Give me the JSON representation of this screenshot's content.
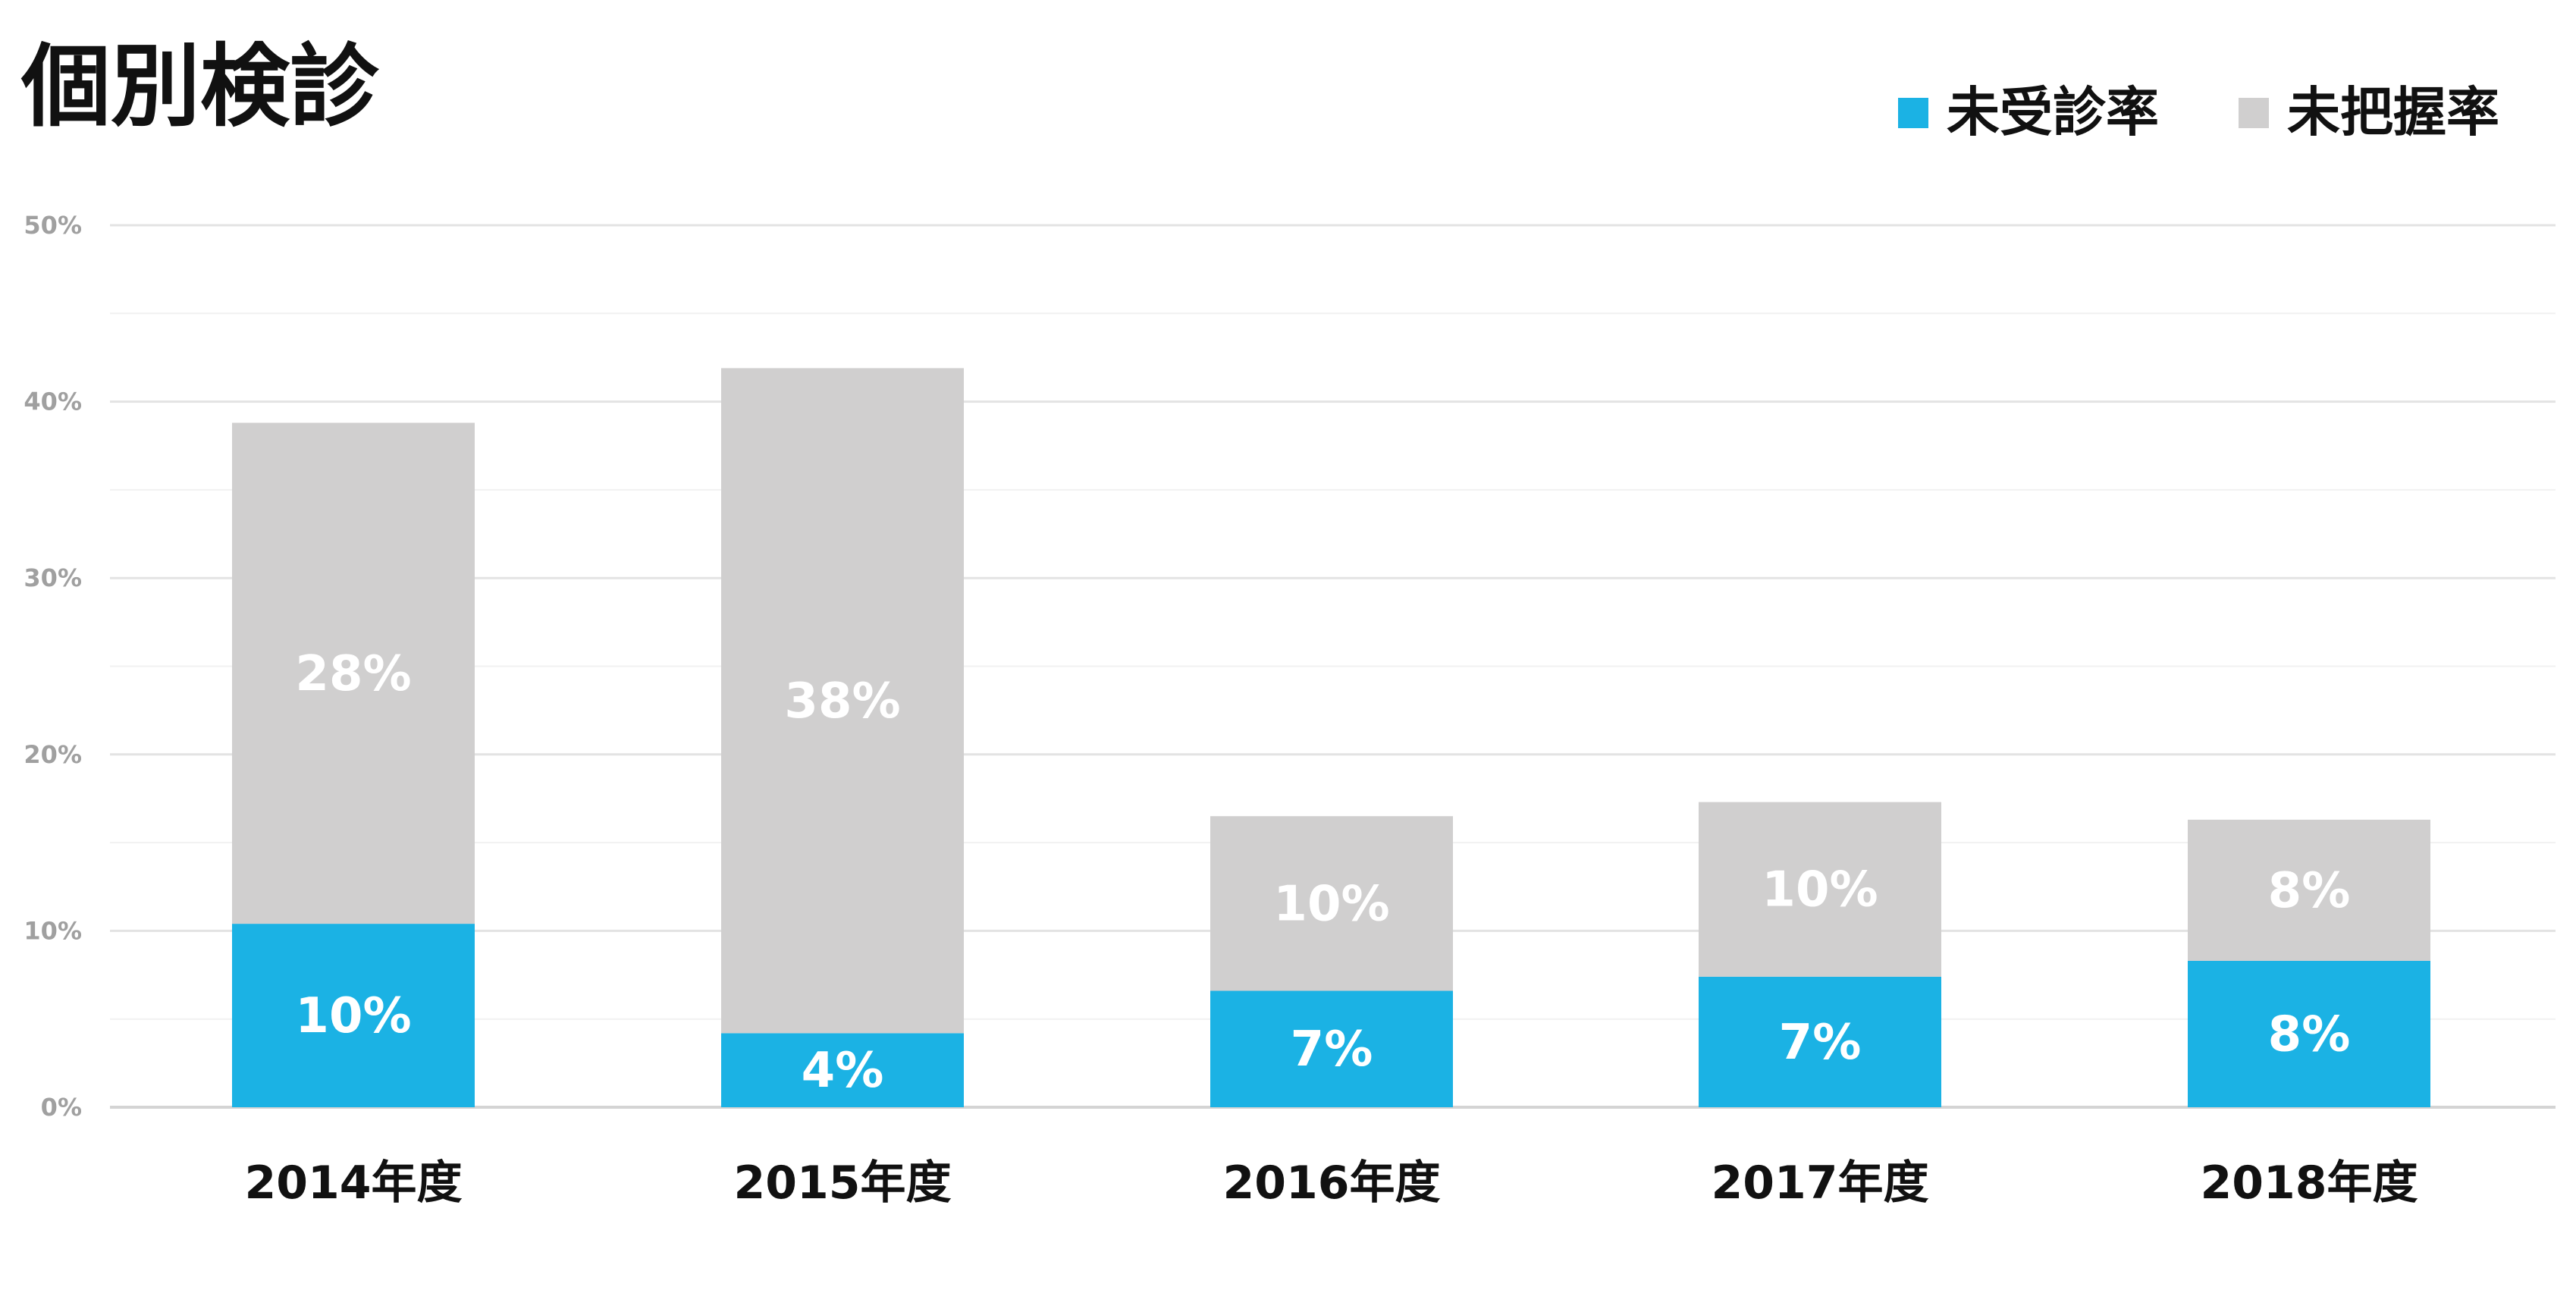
{
  "chart_data": {
    "type": "bar",
    "stacked": true,
    "title": "個別検診",
    "categories": [
      "2014年度",
      "2015年度",
      "2016年度",
      "2017年度",
      "2018年度"
    ],
    "series": [
      {
        "name": "未受診率",
        "color": "#1bb2e4",
        "values": [
          10.4,
          4.2,
          6.6,
          7.4,
          8.3
        ],
        "labels": [
          "10%",
          "4%",
          "7%",
          "7%",
          "8%"
        ]
      },
      {
        "name": "未把握率",
        "color": "#d0cfcf",
        "values": [
          28.4,
          37.7,
          9.9,
          9.9,
          8.0
        ],
        "labels": [
          "28%",
          "38%",
          "10%",
          "10%",
          "8%"
        ]
      }
    ],
    "y_ticks": [
      "0%",
      "10%",
      "20%",
      "30%",
      "40%",
      "50%"
    ],
    "ylim": [
      0,
      50
    ],
    "grid": true,
    "legend_position": "top-right"
  }
}
